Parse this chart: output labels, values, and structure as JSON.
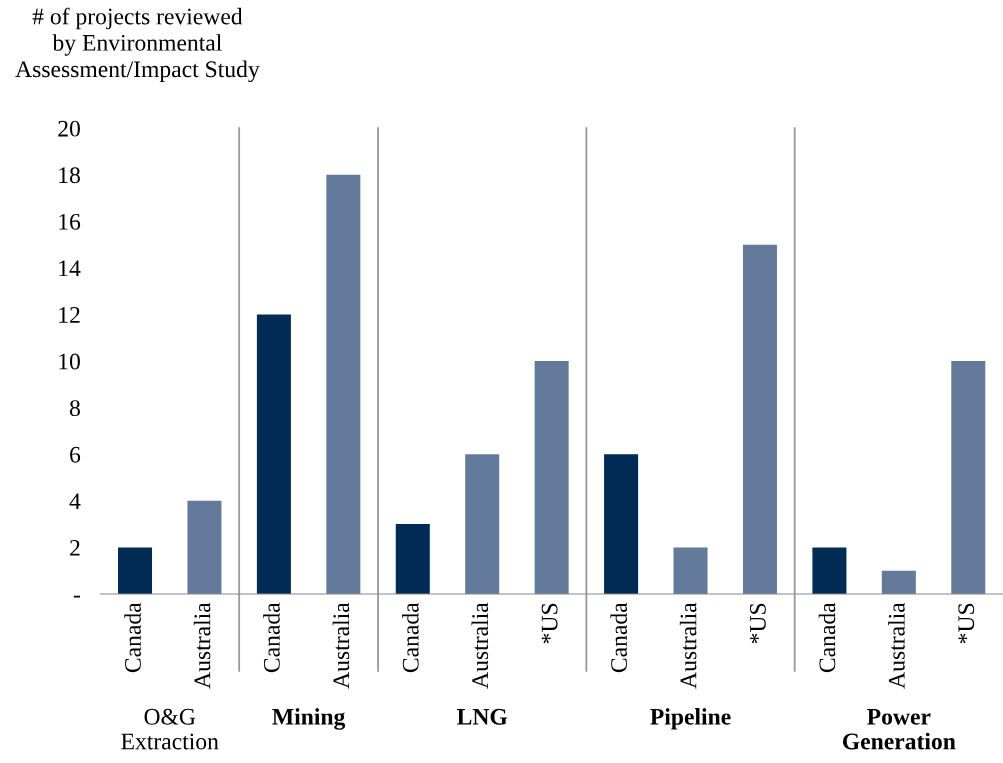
{
  "chart_data": {
    "type": "bar",
    "ylabel": "# of projects reviewed\nby Environmental\nAssessment/Impact Study",
    "categories": [
      "Canada",
      "Australia",
      "Canada",
      "Australia",
      "Canada",
      "Australia",
      "*US",
      "Canada",
      "Australia",
      "*US",
      "Canada",
      "Australia",
      "*US"
    ],
    "values": [
      2,
      4,
      12,
      18,
      3,
      6,
      10,
      6,
      2,
      15,
      2,
      1,
      10
    ],
    "colors": [
      "#002b55",
      "#637a9a",
      "#002b55",
      "#637a9a",
      "#002b55",
      "#637a9a",
      "#637a9a",
      "#002b55",
      "#637a9a",
      "#637a9a",
      "#002b55",
      "#637a9a",
      "#637a9a"
    ],
    "ylim": [
      0,
      20
    ],
    "yticks": [
      {
        "value": 0,
        "label": "-"
      },
      2,
      4,
      6,
      8,
      10,
      12,
      14,
      16,
      18,
      20
    ],
    "grid": false,
    "legend": false,
    "annotations": [
      "O&G\nExtraction",
      "Mining",
      "LNG",
      "Pipeline",
      "Power\nGeneration"
    ]
  }
}
